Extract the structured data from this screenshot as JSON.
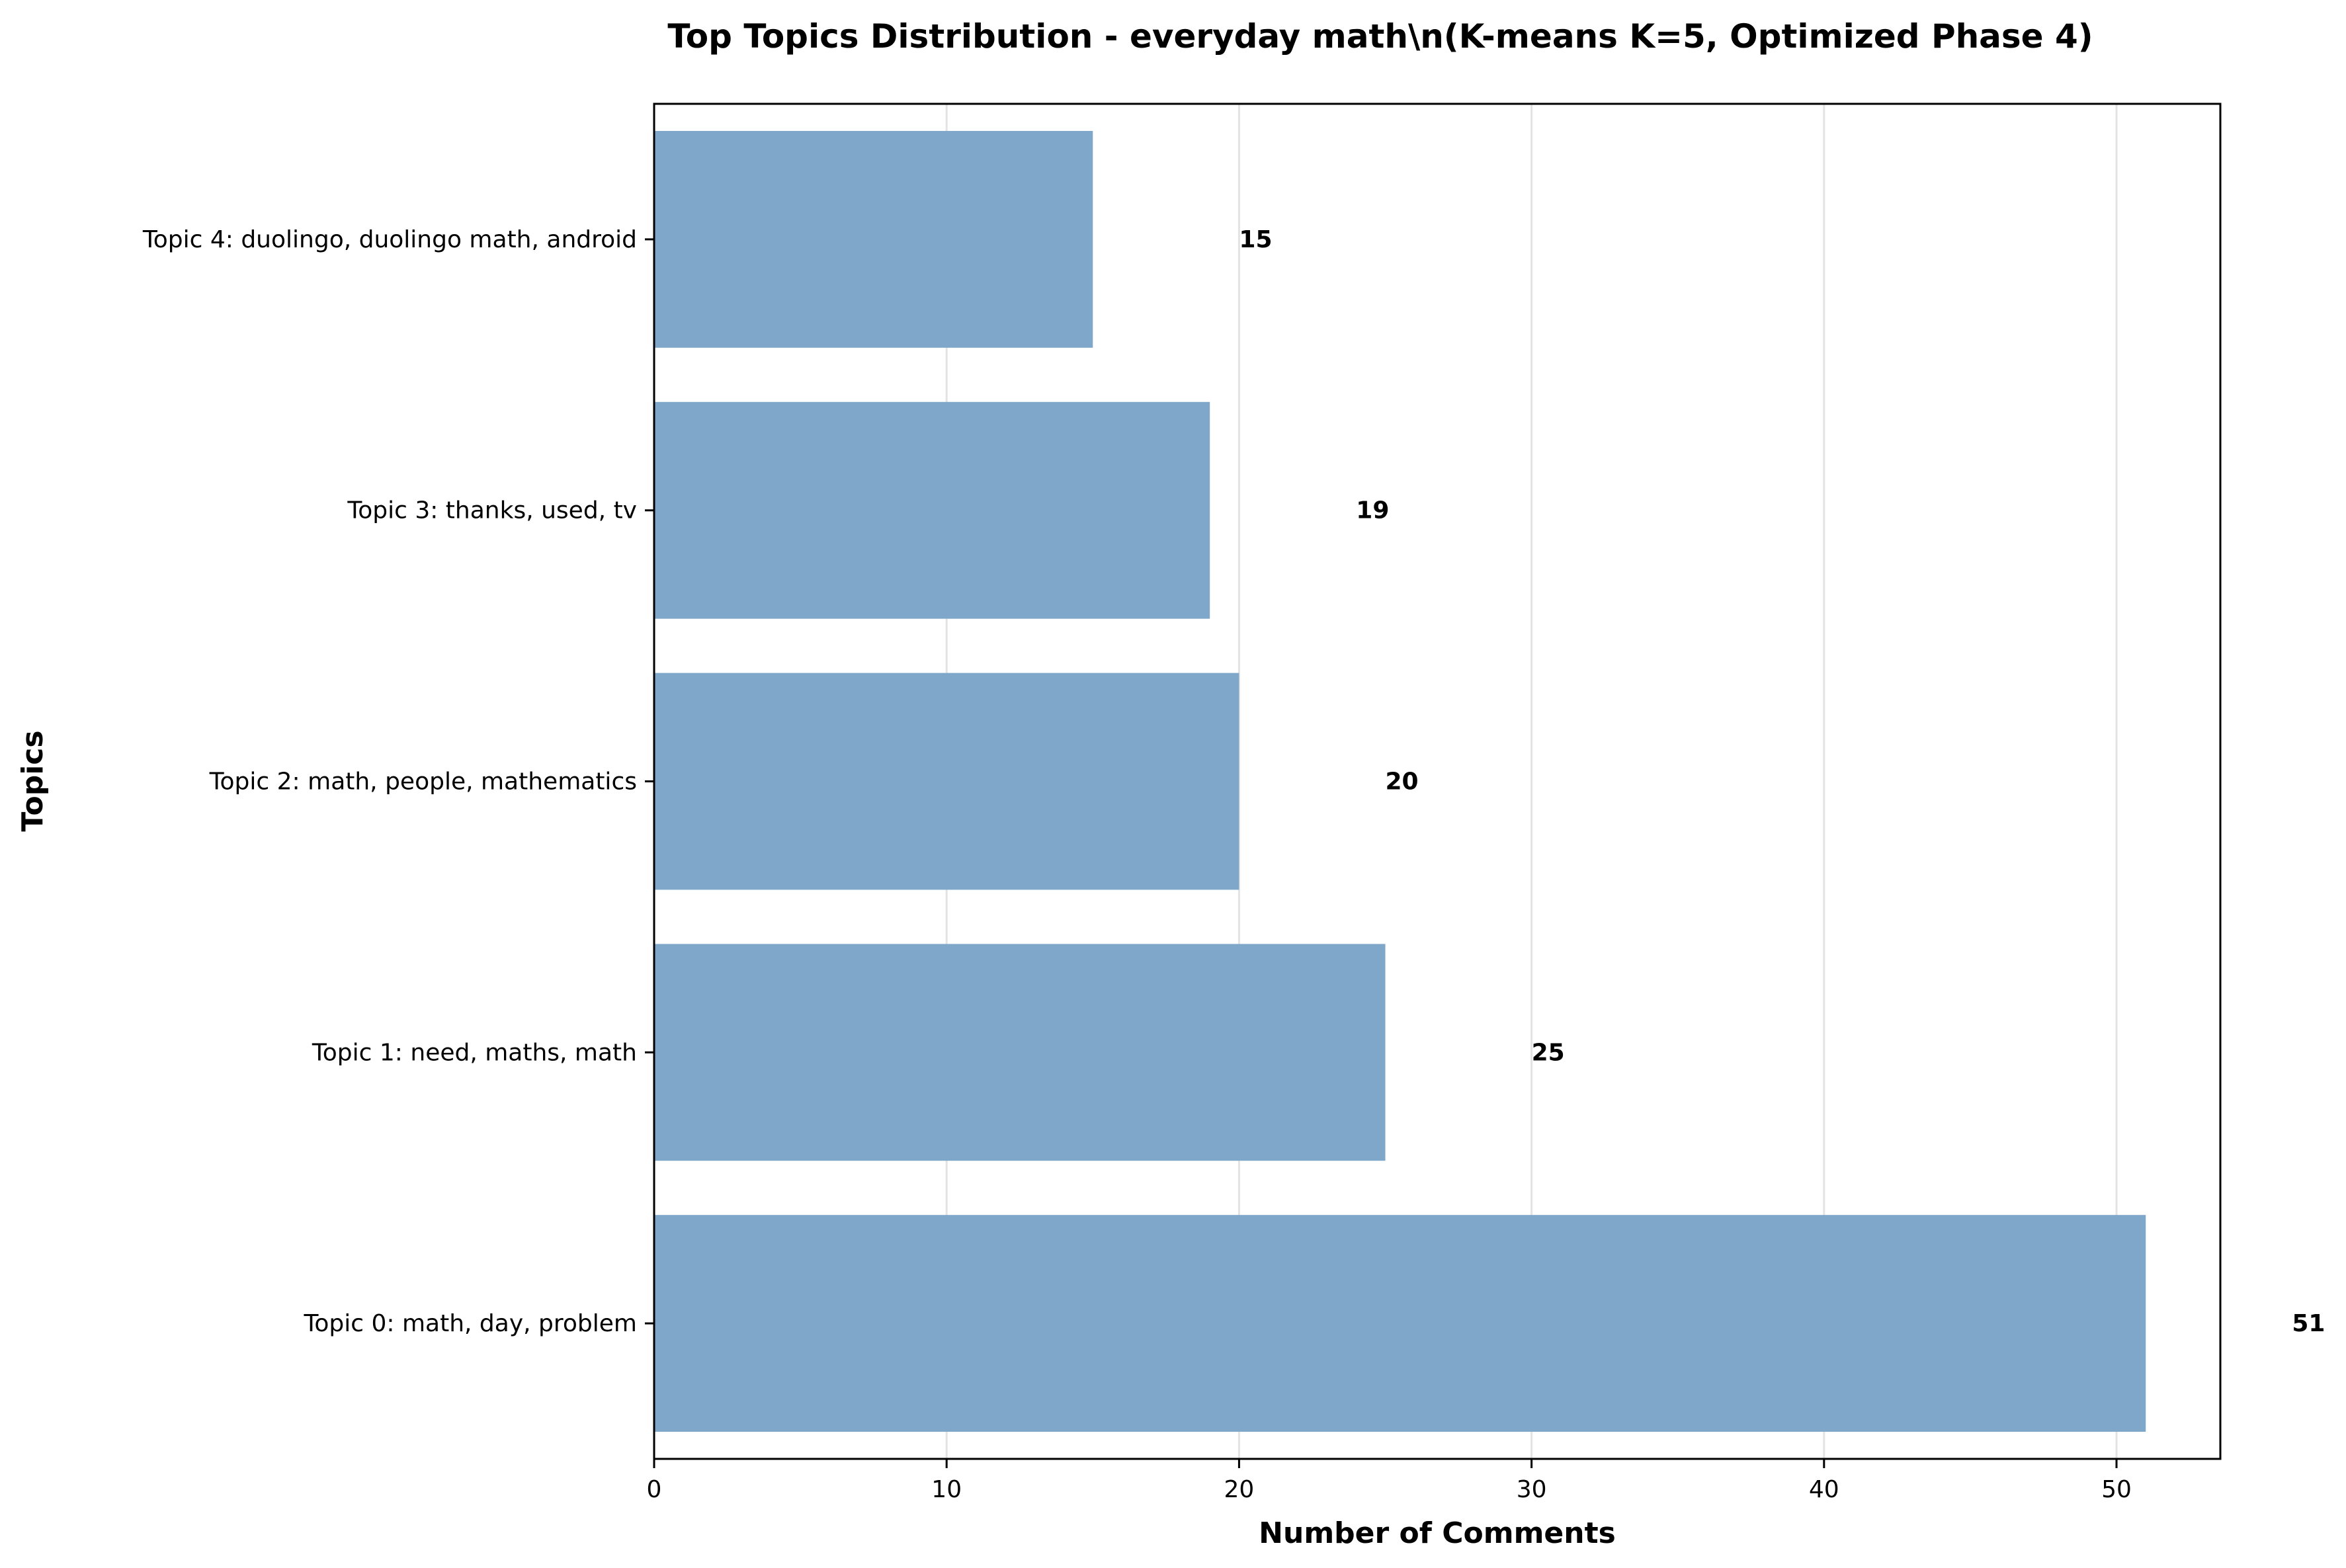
{
  "chart_data": {
    "type": "bar",
    "orientation": "horizontal",
    "title": "Top Topics Distribution - everyday math\\n(K-means K=5, Optimized Phase 4)",
    "xlabel": "Number of Comments",
    "ylabel": "Topics",
    "categories": [
      "Topic 0: math, day, problem",
      "Topic 1: need, maths, math",
      "Topic 2: math, people, mathematics",
      "Topic 3: thanks, used, tv",
      "Topic 4: duolingo, duolingo math, android"
    ],
    "values": [
      51,
      25,
      20,
      19,
      15
    ],
    "data_labels": [
      "51",
      "25",
      "20",
      "19",
      "15"
    ],
    "xlim": [
      0,
      53.55
    ],
    "xticks": [
      0,
      10,
      20,
      30,
      40,
      50
    ],
    "xtick_labels": [
      "0",
      "10",
      "20",
      "30",
      "40",
      "50"
    ],
    "grid": "x-axis vertical gridlines",
    "legend": "none",
    "colors": {
      "bar": "#7ea7ca",
      "grid": "#e3e3e3",
      "axis": "#000000"
    }
  }
}
